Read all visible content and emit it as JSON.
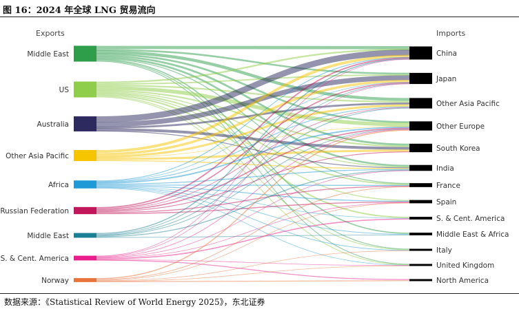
{
  "figure": {
    "title": "图 16：2024 年全球 LNG 贸易流向",
    "source": "数据来源：《Statistical Review of World Energy 2025》，东北证券"
  },
  "chart_data": {
    "type": "sankey",
    "title": "2024 年全球 LNG 贸易流向",
    "exports_header": "Exports",
    "imports_header": "Imports",
    "exporters": [
      {
        "name": "Middle East",
        "color": "#2e9e4b",
        "weight": 1.0
      },
      {
        "name": "US",
        "color": "#8fce4a",
        "weight": 1.0
      },
      {
        "name": "Australia",
        "color": "#2c2a5e",
        "weight": 0.95
      },
      {
        "name": "Other Asia Pacific",
        "color": "#f7c400",
        "weight": 0.7
      },
      {
        "name": "Africa",
        "color": "#1f9ad6",
        "weight": 0.5
      },
      {
        "name": "Russian Federation",
        "color": "#c2185b",
        "weight": 0.45
      },
      {
        "name": "Middle East",
        "color": "#1b7f95",
        "weight": 0.3
      },
      {
        "name": "S. & Cent. America",
        "color": "#e91e8c",
        "weight": 0.3
      },
      {
        "name": "Norway",
        "color": "#e8743b",
        "weight": 0.25
      }
    ],
    "importers": [
      {
        "name": "China",
        "weight": 1.0
      },
      {
        "name": "Japan",
        "weight": 0.85
      },
      {
        "name": "Other Asia Pacific",
        "weight": 0.8
      },
      {
        "name": "Other Europe",
        "weight": 0.7
      },
      {
        "name": "South Korea",
        "weight": 0.65
      },
      {
        "name": "India",
        "weight": 0.45
      },
      {
        "name": "France",
        "weight": 0.3
      },
      {
        "name": "Spain",
        "weight": 0.25
      },
      {
        "name": "S. & Cent. America",
        "weight": 0.2
      },
      {
        "name": "Middle East & Africa",
        "weight": 0.2
      },
      {
        "name": "Italy",
        "weight": 0.15
      },
      {
        "name": "United Kingdom",
        "weight": 0.15
      },
      {
        "name": "North America",
        "weight": 0.15
      }
    ],
    "flows": [
      [
        0,
        0,
        4
      ],
      [
        0,
        2,
        3
      ],
      [
        0,
        1,
        2
      ],
      [
        0,
        5,
        2
      ],
      [
        0,
        4,
        2
      ],
      [
        0,
        3,
        2
      ],
      [
        0,
        6,
        1
      ],
      [
        0,
        9,
        1
      ],
      [
        0,
        10,
        1
      ],
      [
        0,
        11,
        1
      ],
      [
        1,
        3,
        4
      ],
      [
        1,
        0,
        2
      ],
      [
        1,
        1,
        1.5
      ],
      [
        1,
        4,
        1.5
      ],
      [
        1,
        2,
        1.5
      ],
      [
        1,
        6,
        1.5
      ],
      [
        1,
        7,
        1
      ],
      [
        1,
        8,
        1.5
      ],
      [
        1,
        11,
        1
      ],
      [
        1,
        10,
        1
      ],
      [
        1,
        5,
        1
      ],
      [
        2,
        0,
        8
      ],
      [
        2,
        1,
        6
      ],
      [
        2,
        4,
        3
      ],
      [
        2,
        2,
        2
      ],
      [
        2,
        5,
        1
      ],
      [
        3,
        0,
        3
      ],
      [
        3,
        1,
        2.5
      ],
      [
        3,
        4,
        2
      ],
      [
        3,
        2,
        2
      ],
      [
        3,
        5,
        1
      ],
      [
        3,
        3,
        0.5
      ],
      [
        4,
        3,
        1.5
      ],
      [
        4,
        0,
        1
      ],
      [
        4,
        6,
        1
      ],
      [
        4,
        7,
        1
      ],
      [
        4,
        5,
        1
      ],
      [
        4,
        10,
        0.8
      ],
      [
        4,
        2,
        0.8
      ],
      [
        4,
        11,
        0.6
      ],
      [
        4,
        1,
        0.6
      ],
      [
        4,
        8,
        0.6
      ],
      [
        4,
        9,
        0.6
      ],
      [
        5,
        0,
        1.5
      ],
      [
        5,
        1,
        1.2
      ],
      [
        5,
        3,
        1.2
      ],
      [
        5,
        6,
        1
      ],
      [
        5,
        7,
        1
      ],
      [
        5,
        4,
        0.8
      ],
      [
        5,
        2,
        0.6
      ],
      [
        6,
        0,
        1
      ],
      [
        6,
        5,
        0.8
      ],
      [
        6,
        3,
        0.6
      ],
      [
        6,
        1,
        0.6
      ],
      [
        6,
        2,
        0.6
      ],
      [
        6,
        9,
        0.5
      ],
      [
        7,
        8,
        1
      ],
      [
        7,
        0,
        0.6
      ],
      [
        7,
        3,
        0.6
      ],
      [
        7,
        7,
        0.5
      ],
      [
        7,
        12,
        0.5
      ],
      [
        7,
        5,
        0.4
      ],
      [
        7,
        1,
        0.4
      ],
      [
        7,
        11,
        0.4
      ],
      [
        8,
        3,
        1
      ],
      [
        8,
        6,
        0.7
      ],
      [
        8,
        11,
        0.6
      ],
      [
        8,
        12,
        0.5
      ],
      [
        8,
        7,
        0.5
      ],
      [
        8,
        10,
        0.4
      ]
    ]
  }
}
